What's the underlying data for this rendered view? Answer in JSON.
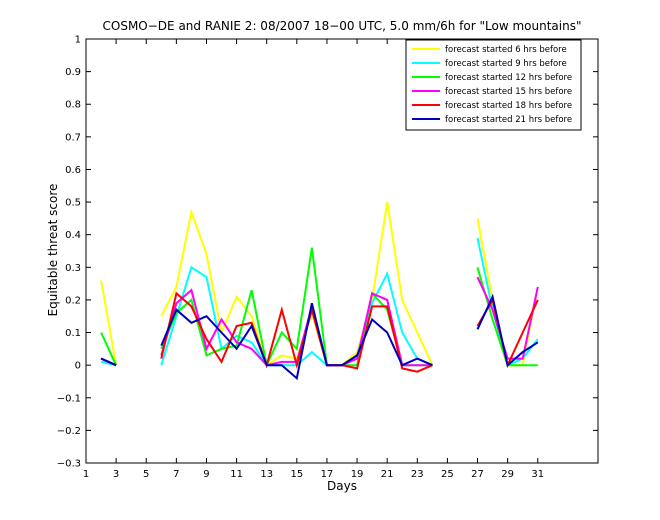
{
  "chart_data": {
    "type": "line",
    "title": "COSMO−DE and RANIE 2: 08/2007 18−00 UTC, 5.0 mm/6h for \"Low mountains\"",
    "xlabel": "Days",
    "ylabel": "Equitable threat score",
    "xlim": [
      1,
      35
    ],
    "ylim": [
      -0.3,
      1
    ],
    "x_ticks": [
      1,
      3,
      5,
      7,
      9,
      11,
      13,
      15,
      17,
      19,
      21,
      23,
      25,
      27,
      29,
      31
    ],
    "y_ticks": [
      -0.3,
      -0.2,
      -0.1,
      0,
      0.1,
      0.2,
      0.3,
      0.4,
      0.5,
      0.6,
      0.7,
      0.8,
      0.9,
      1
    ],
    "y_tick_labels": [
      "−0.3",
      "−0.2",
      "−0.1",
      "0",
      "0.1",
      "0.2",
      "0.3",
      "0.4",
      "0.5",
      "0.6",
      "0.7",
      "0.8",
      "0.9",
      "1"
    ],
    "legend_position": "top-right",
    "grid": false,
    "x": [
      2,
      3,
      4,
      5,
      6,
      7,
      8,
      9,
      10,
      11,
      12,
      13,
      14,
      15,
      16,
      17,
      18,
      19,
      20,
      21,
      22,
      23,
      24,
      25,
      26,
      27,
      28,
      29,
      30,
      31
    ],
    "series": [
      {
        "name": "forecast started 6 hrs before",
        "color": "#ffff00",
        "values": [
          0.26,
          0.0,
          null,
          null,
          0.15,
          0.24,
          0.47,
          0.34,
          0.1,
          0.21,
          0.15,
          0.0,
          0.03,
          0.02,
          0.16,
          0.0,
          0.0,
          0.04,
          0.2,
          0.5,
          0.2,
          0.1,
          0.0,
          null,
          null,
          0.45,
          0.2,
          0.0,
          0.0,
          0.24
        ]
      },
      {
        "name": "forecast started 9 hrs before",
        "color": "#00ffff",
        "values": [
          0.01,
          0.0,
          null,
          null,
          0.0,
          0.15,
          0.3,
          0.27,
          0.05,
          0.09,
          0.07,
          0.0,
          0.0,
          0.0,
          0.04,
          0.0,
          0.0,
          0.03,
          0.19,
          0.28,
          0.1,
          0.02,
          0.0,
          null,
          null,
          0.39,
          0.17,
          0.0,
          0.02,
          0.08
        ]
      },
      {
        "name": "forecast started 12 hrs before",
        "color": "#00ff00",
        "values": [
          0.1,
          0.0,
          null,
          null,
          0.05,
          0.16,
          0.2,
          0.03,
          0.05,
          0.06,
          0.23,
          0.0,
          0.1,
          0.05,
          0.36,
          0.0,
          0.0,
          0.0,
          0.22,
          0.17,
          0.0,
          0.0,
          0.0,
          null,
          null,
          0.3,
          0.14,
          0.0,
          0.0,
          0.0
        ]
      },
      {
        "name": "forecast started 15 hrs before",
        "color": "#ff00ff",
        "values": [
          0.02,
          0.0,
          null,
          null,
          0.03,
          0.19,
          0.23,
          0.05,
          0.14,
          0.07,
          0.05,
          0.0,
          0.01,
          0.01,
          0.18,
          0.0,
          0.0,
          0.02,
          0.22,
          0.2,
          0.0,
          0.0,
          0.0,
          null,
          null,
          0.27,
          0.17,
          0.02,
          0.02,
          0.24
        ]
      },
      {
        "name": "forecast started 18 hrs before",
        "color": "#ff0000",
        "values": [
          0.02,
          0.0,
          null,
          null,
          0.02,
          0.22,
          0.18,
          0.08,
          0.01,
          0.12,
          0.13,
          0.0,
          0.17,
          0.0,
          0.17,
          0.0,
          0.0,
          -0.01,
          0.18,
          0.18,
          -0.01,
          -0.02,
          0.0,
          null,
          null,
          0.12,
          0.2,
          0.0,
          0.1,
          0.2
        ]
      },
      {
        "name": "forecast started 21 hrs before",
        "color": "#0000bb",
        "values": [
          0.02,
          0.0,
          null,
          null,
          0.06,
          0.17,
          0.13,
          0.15,
          0.1,
          0.05,
          0.12,
          0.0,
          0.0,
          -0.04,
          0.19,
          0.0,
          0.0,
          0.03,
          0.14,
          0.1,
          0.0,
          0.02,
          0.0,
          null,
          null,
          0.11,
          0.21,
          0.0,
          0.04,
          0.07
        ]
      }
    ]
  }
}
